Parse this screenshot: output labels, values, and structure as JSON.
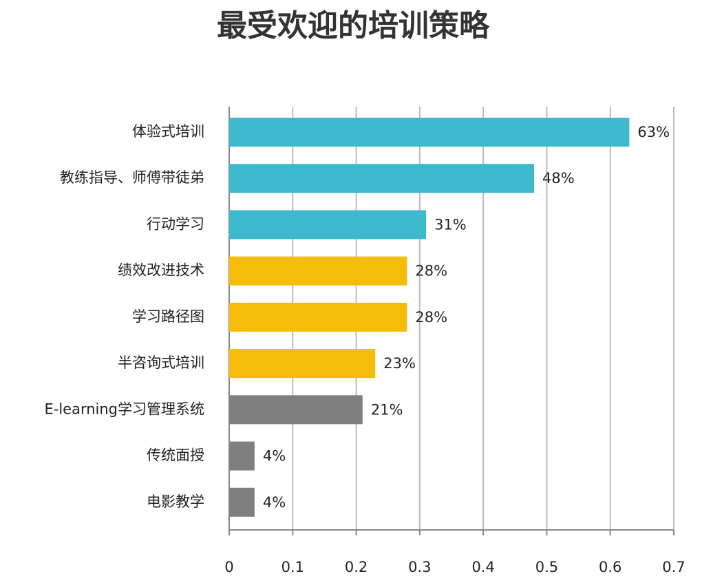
{
  "chart_data": {
    "type": "hbar",
    "title": "最受欢迎的培训策略",
    "categories": [
      "体验式培训",
      "教练指导、师傅带徒弟",
      "行动学习",
      "绩效改进技术",
      "学习路径图",
      "半咨询式培训",
      "E-learning学习管理系统",
      "传统面授",
      "电影教学"
    ],
    "values": [
      0.63,
      0.48,
      0.31,
      0.28,
      0.28,
      0.23,
      0.21,
      0.04,
      0.04
    ],
    "value_labels": [
      "63%",
      "48%",
      "31%",
      "28%",
      "28%",
      "23%",
      "21%",
      "4%",
      "4%"
    ],
    "colors": [
      "#3db8cc",
      "#3db8cc",
      "#3db8cc",
      "#f5bd0a",
      "#f5bd0a",
      "#f5bd0a",
      "#7f7f7f",
      "#7f7f7f",
      "#7f7f7f"
    ],
    "xlim": [
      0,
      0.7
    ],
    "xticks": [
      0,
      0.1,
      0.2,
      0.3,
      0.4,
      0.5,
      0.6,
      0.7
    ],
    "grid": true
  }
}
